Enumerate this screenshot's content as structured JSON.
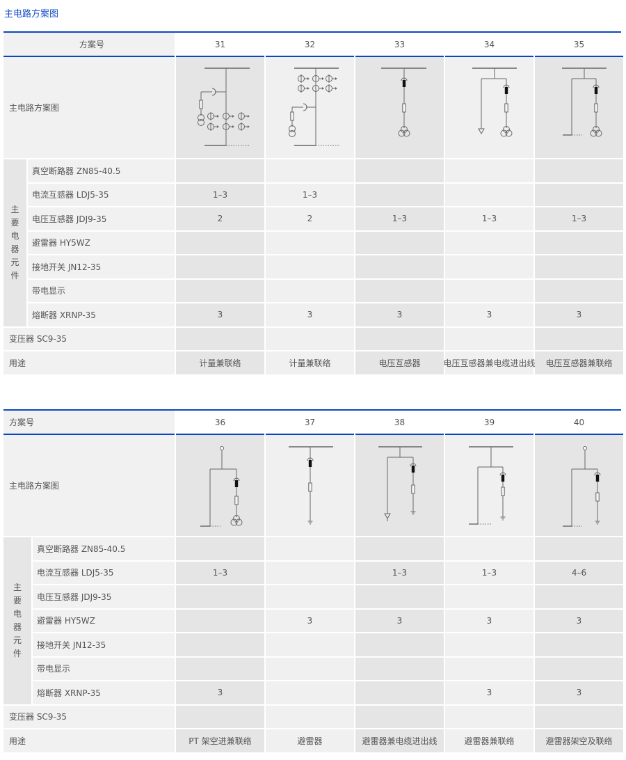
{
  "page_title": "主电路方案图",
  "colors": {
    "accent": "#0a47bf",
    "title": "#1a4fc4"
  },
  "tables": [
    {
      "header_label": "方案号",
      "diagram_label": "主电路方案图",
      "group_label": [
        "主",
        "要",
        "电",
        "器",
        "元",
        "件"
      ],
      "component_labels": [
        "真空断路器 ZN85-40.5",
        "电流互感器 LDJ5-35",
        "电压互感器 JDJ9-35",
        "避雷器 HY5WZ",
        "接地开关 JN12-35",
        "带电显示",
        "熔断器 XRNP-35"
      ],
      "transformer_label": "变压器 SC9-35",
      "usage_label": "用途",
      "schemes": [
        {
          "number": "31",
          "values": [
            "",
            "1–3",
            "2",
            "",
            "",
            "",
            "3"
          ],
          "transformer": "",
          "usage": "计量兼联络"
        },
        {
          "number": "32",
          "values": [
            "",
            "1–3",
            "2",
            "",
            "",
            "",
            "3"
          ],
          "transformer": "",
          "usage": "计量兼联络"
        },
        {
          "number": "33",
          "values": [
            "",
            "",
            "1–3",
            "",
            "",
            "",
            "3"
          ],
          "transformer": "",
          "usage": "电压互感器"
        },
        {
          "number": "34",
          "values": [
            "",
            "",
            "1–3",
            "",
            "",
            "",
            "3"
          ],
          "transformer": "",
          "usage": "电压互感器兼电缆进出线"
        },
        {
          "number": "35",
          "values": [
            "",
            "",
            "1–3",
            "",
            "",
            "",
            "3"
          ],
          "transformer": "",
          "usage": "电压互感器兼联络"
        }
      ]
    },
    {
      "header_label": "方案号",
      "diagram_label": "主电路方案图",
      "group_label": [
        "主",
        "要",
        "电",
        "器",
        "元",
        "件"
      ],
      "component_labels": [
        "真空断路器 ZN85-40.5",
        "电流互感器 LDJ5-35",
        "电压互感器 JDJ9-35",
        "避雷器 HY5WZ",
        "接地开关 JN12-35",
        "带电显示",
        "熔断器 XRNP-35"
      ],
      "transformer_label": "变压器 SC9-35",
      "usage_label": "用途",
      "schemes": [
        {
          "number": "36",
          "values": [
            "",
            "1–3",
            "",
            "",
            "",
            "",
            "3"
          ],
          "transformer": "",
          "usage": "PT 架空进兼联络"
        },
        {
          "number": "37",
          "values": [
            "",
            "",
            "",
            "3",
            "",
            "",
            ""
          ],
          "transformer": "",
          "usage": "避雷器"
        },
        {
          "number": "38",
          "values": [
            "",
            "1–3",
            "",
            "3",
            "",
            "",
            ""
          ],
          "transformer": "",
          "usage": "避雷器兼电缆进出线"
        },
        {
          "number": "39",
          "values": [
            "",
            "1–3",
            "",
            "3",
            "",
            "",
            "3"
          ],
          "transformer": "",
          "usage": "避雷器兼联络"
        },
        {
          "number": "40",
          "values": [
            "",
            "4–6",
            "",
            "3",
            "",
            "",
            "3"
          ],
          "transformer": "",
          "usage": "避雷器架空及联络"
        }
      ]
    }
  ]
}
